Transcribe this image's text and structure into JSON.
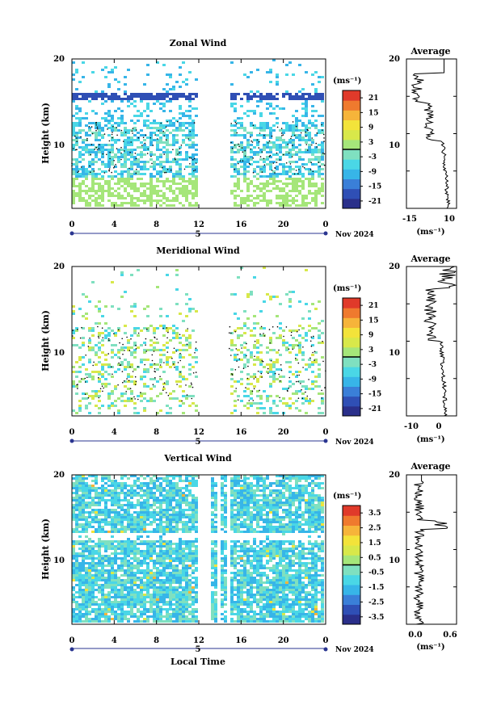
{
  "figure": {
    "xlabel": "Local Time",
    "month_label": "Nov 2024",
    "day_label": "5",
    "unit_label": "(ms⁻¹)"
  },
  "chart_data": [
    {
      "type": "heatmap",
      "title": "Zonal Wind",
      "ylabel": "Height (km)",
      "xlabel": "Local Time",
      "x_ticks": [
        "0",
        "4",
        "8",
        "12",
        "16",
        "20",
        "0"
      ],
      "y_ticks": [
        "10",
        "20"
      ],
      "xlim": [
        0,
        24
      ],
      "ylim": [
        1.5,
        20
      ],
      "date": "5",
      "month": "Nov 2024",
      "colorbar": {
        "unit": "(ms⁻¹)",
        "ticks": [
          "21",
          "15",
          "9",
          "3",
          "-3",
          "-9",
          "-15",
          "-21"
        ],
        "range": [
          -24,
          24
        ]
      },
      "average_profile": {
        "title": "Average",
        "unit": "(ms⁻¹)",
        "x_ticks": [
          "-15",
          "10"
        ],
        "xlim": [
          -20,
          15
        ],
        "y_ticks": [
          "10",
          "20"
        ]
      }
    },
    {
      "type": "heatmap",
      "title": "Meridional Wind",
      "ylabel": "Height (km)",
      "xlabel": "Local Time",
      "x_ticks": [
        "0",
        "4",
        "8",
        "12",
        "16",
        "20",
        "0"
      ],
      "y_ticks": [
        "10",
        "20"
      ],
      "xlim": [
        0,
        24
      ],
      "ylim": [
        1.5,
        20
      ],
      "date": "5",
      "month": "Nov 2024",
      "colorbar": {
        "unit": "(ms⁻¹)",
        "ticks": [
          "21",
          "15",
          "9",
          "3",
          "-3",
          "-9",
          "-15",
          "-21"
        ],
        "range": [
          -24,
          24
        ]
      },
      "average_profile": {
        "title": "Average",
        "unit": "(ms⁻¹)",
        "x_ticks": [
          "-10",
          "0"
        ],
        "xlim": [
          -15,
          5
        ],
        "y_ticks": [
          "10",
          "20"
        ]
      }
    },
    {
      "type": "heatmap",
      "title": "Vertical Wind",
      "ylabel": "Height (km)",
      "xlabel": "Local Time",
      "x_ticks": [
        "0",
        "4",
        "8",
        "12",
        "16",
        "20",
        "0"
      ],
      "y_ticks": [
        "10",
        "20"
      ],
      "xlim": [
        0,
        24
      ],
      "ylim": [
        1.5,
        20
      ],
      "date": "5",
      "month": "Nov 2024",
      "colorbar": {
        "unit": "(ms⁻¹)",
        "ticks": [
          "3.5",
          "2.5",
          "1.5",
          "0.5",
          "-0.5",
          "-1.5",
          "-2.5",
          "-3.5"
        ],
        "range": [
          -4,
          4
        ]
      },
      "average_profile": {
        "title": "Average",
        "unit": "(ms⁻¹)",
        "x_ticks": [
          "0.0",
          "0.6"
        ],
        "xlim": [
          -0.2,
          0.8
        ],
        "y_ticks": [
          "10",
          "20"
        ]
      }
    }
  ],
  "colors": {
    "palette": [
      "#2a2f8a",
      "#2f4fb5",
      "#3a7fd8",
      "#37b5e8",
      "#4ad7e6",
      "#7fe0c0",
      "#a5e67a",
      "#d8e84a",
      "#f3e33a",
      "#f6b43a",
      "#ef7a2e",
      "#e03a2a"
    ]
  }
}
